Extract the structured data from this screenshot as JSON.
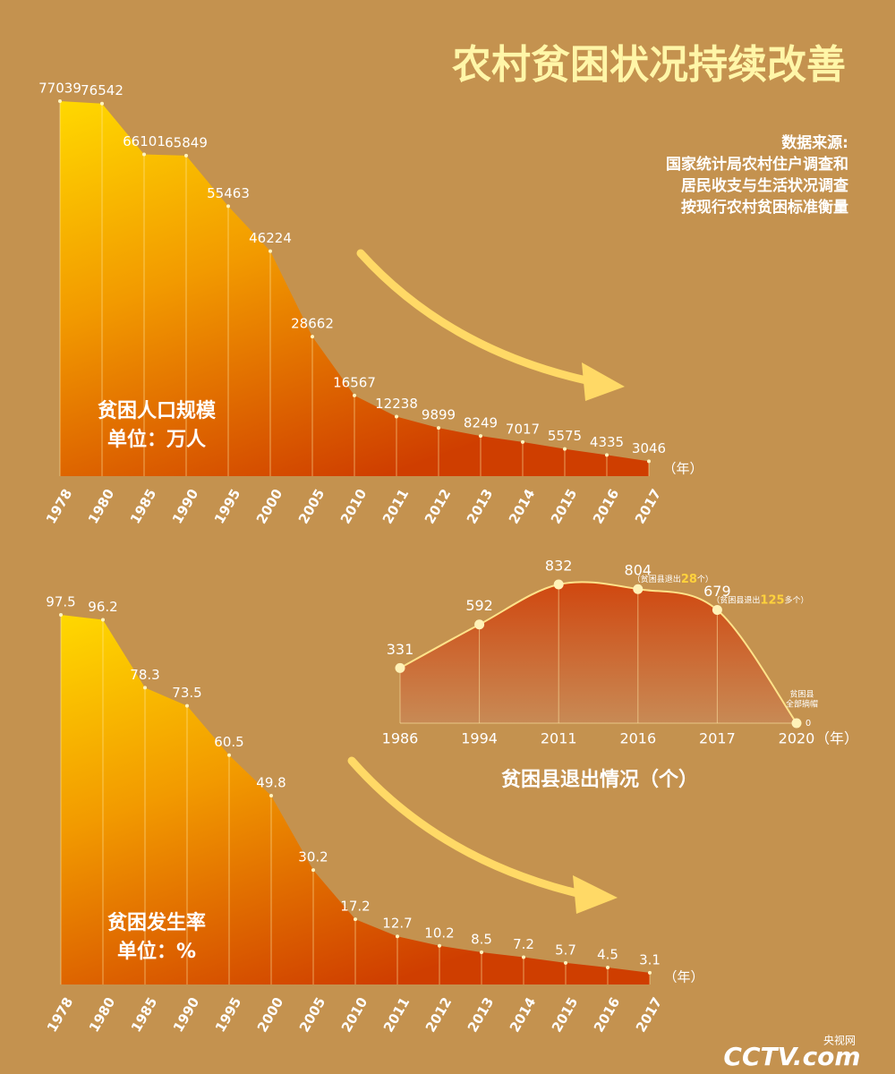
{
  "title": "农村贫困状况持续改善",
  "source": [
    "数据来源:",
    "国家统计局农村住户调查和",
    "居民收支与生活状况调查",
    "按现行农村贫困标准衡量"
  ],
  "logo": {
    "name": "央视网",
    "brand": "CCTV.com"
  },
  "chart_data": [
    {
      "type": "area",
      "ylabel": "贫困人口规模",
      "unit_label": "单位：万人",
      "x_unit": "（年）",
      "categories": [
        "1978",
        "1980",
        "1985",
        "1990",
        "1995",
        "2000",
        "2005",
        "2010",
        "2011",
        "2012",
        "2013",
        "2014",
        "2015",
        "2016",
        "2017"
      ],
      "values": [
        77039,
        76542,
        66101,
        65849,
        55463,
        46224,
        28662,
        16567,
        12238,
        9899,
        8249,
        7017,
        5575,
        4335,
        3046
      ]
    },
    {
      "type": "area",
      "ylabel": "贫困发生率",
      "unit_label": "单位：%",
      "x_unit": "（年）",
      "categories": [
        "1978",
        "1980",
        "1985",
        "1990",
        "1995",
        "2000",
        "2005",
        "2010",
        "2011",
        "2012",
        "2013",
        "2014",
        "2015",
        "2016",
        "2017"
      ],
      "values": [
        97.5,
        96.2,
        78.3,
        73.5,
        60.5,
        49.8,
        30.2,
        17.2,
        12.7,
        10.2,
        8.5,
        7.2,
        5.7,
        4.5,
        3.1
      ]
    },
    {
      "type": "curve",
      "title": "贫困县退出情况（个）",
      "x_unit": "（年）",
      "categories": [
        "1986",
        "1994",
        "2011",
        "2016",
        "2017",
        "2020"
      ],
      "values": [
        331,
        592,
        832,
        804,
        679,
        0
      ],
      "notes": [
        null,
        null,
        null,
        {
          "text": "（贫困县退出",
          "number": "28",
          "unit": "个）"
        },
        {
          "text": "（贫困县退出",
          "number": "125",
          "unit": "多个）"
        },
        {
          "lines": [
            "贫困县",
            "全部摘帽"
          ]
        }
      ]
    }
  ]
}
